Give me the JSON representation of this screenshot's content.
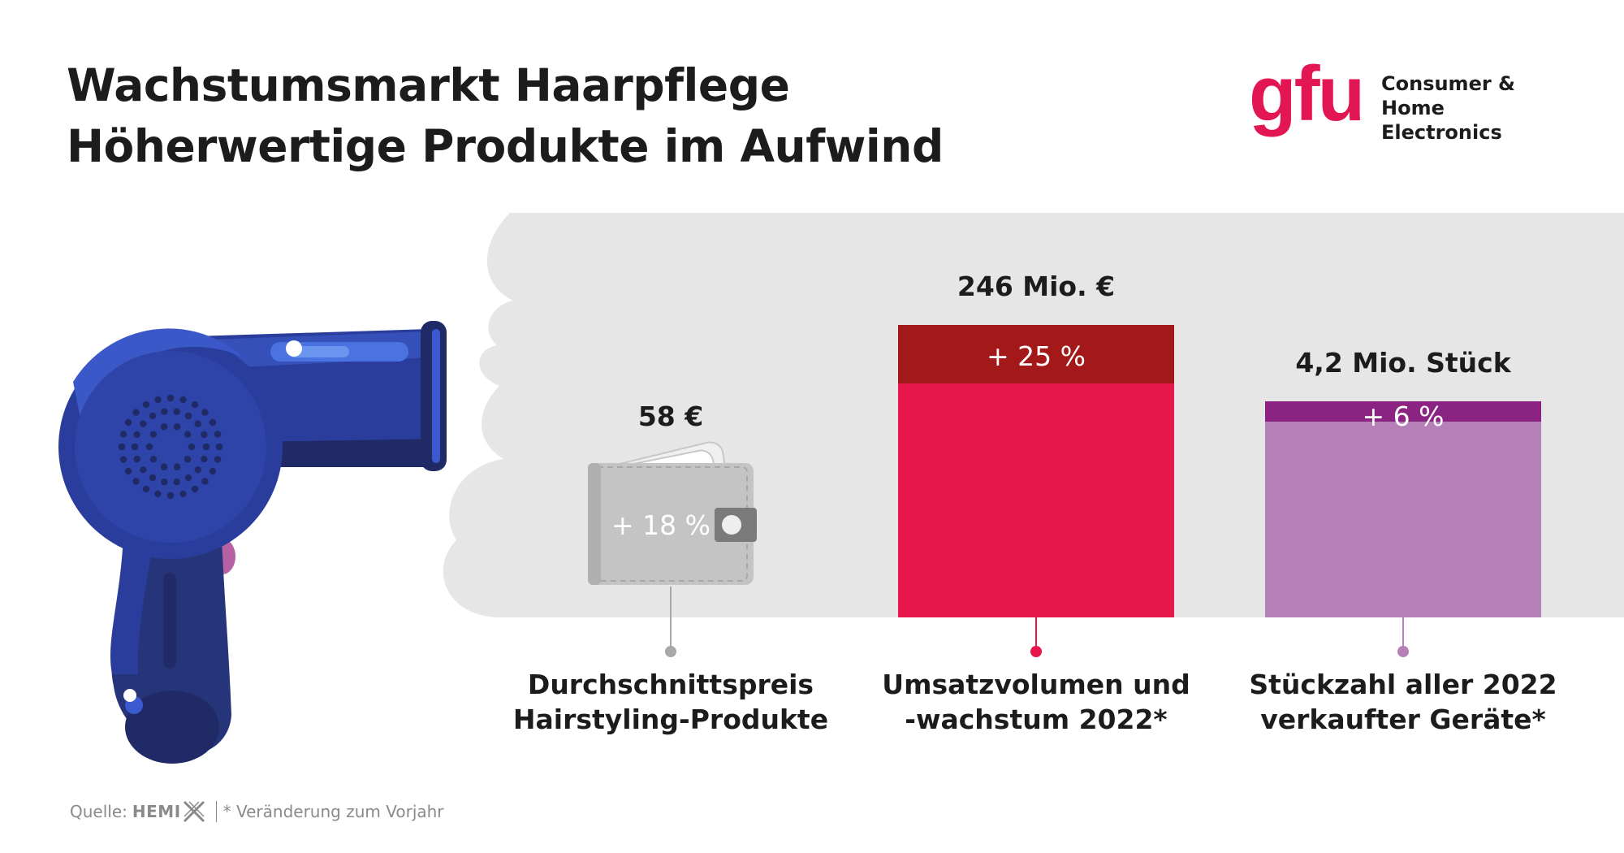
{
  "header": {
    "title_line1": "Wachstumsmarkt Haarpflege",
    "title_line2": "Höherwertige Produkte im Aufwind"
  },
  "logo": {
    "word": "gfu",
    "subtitle_line1": "Consumer &",
    "subtitle_line2": "Home Electronics"
  },
  "footer": {
    "source_label": "Quelle:",
    "source_name": "HEMI",
    "note": "* Veränderung zum Vorjahr"
  },
  "colors": {
    "red_main": "#e8174b",
    "red_dark": "#a31818",
    "purple_main": "#b57fb8",
    "purple_dark": "#8b2383",
    "wallet_gray": "#c4c4c4",
    "cloud_gray": "#e6e6e6",
    "dryer_blue": "#2b3d9c"
  },
  "icons": {
    "dryer": "hair-dryer-icon",
    "wallet": "wallet-icon",
    "source_mark": "x-mark-icon"
  },
  "chart_data": {
    "type": "bar",
    "items": [
      {
        "category_line1": "Durchschnittspreis",
        "category_line2": "Hairstyling-Produkte",
        "value_label": "58 €",
        "growth_label": "+ 18 %",
        "growth_percent": 18,
        "color": "#c4c4c4",
        "marker": "wallet-icon"
      },
      {
        "category_line1": "Umsatzvolumen und",
        "category_line2": "-wachstum 2022*",
        "value_label": "246 Mio. €",
        "value": 246,
        "unit": "Mio. €",
        "growth_label": "+ 25 %",
        "growth_percent": 25,
        "color": "#e8174b",
        "growth_color": "#a31818"
      },
      {
        "category_line1": "Stückzahl aller 2022",
        "category_line2": "verkaufter Geräte*",
        "value_label": "4,2 Mio. Stück",
        "value": 4.2,
        "unit": "Mio. Stück",
        "growth_label": "+ 6 %",
        "growth_percent": 6,
        "color": "#b57fb8",
        "growth_color": "#8b2383"
      }
    ]
  }
}
